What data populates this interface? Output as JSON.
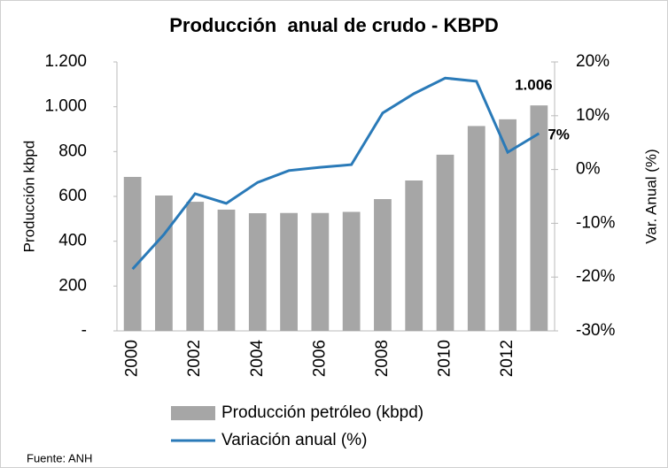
{
  "chart_data": {
    "type": "bar_line",
    "title": "Producción  anual de crudo - KBPD",
    "ylabel": "Producción kbpd",
    "y2label": "Var. Anual (%)",
    "source": "Fuente: ANH",
    "categories": [
      "2000",
      null,
      "2002",
      null,
      "2004",
      null,
      "2006",
      null,
      "2008",
      null,
      "2010",
      null,
      "2012",
      null
    ],
    "series": [
      {
        "name": "Producción petróleo (kbpd)",
        "type": "bar",
        "color": "#a6a6a6",
        "values": [
          687,
          604,
          576,
          541,
          525,
          526,
          526,
          531,
          588,
          671,
          786,
          914,
          944,
          1006
        ],
        "value_labels": [
          null,
          null,
          null,
          null,
          null,
          null,
          null,
          null,
          null,
          null,
          null,
          null,
          null,
          "1.006"
        ]
      },
      {
        "name": "Variación anual (%)",
        "type": "line",
        "axis": "y2",
        "color": "#2a7ab8",
        "values": [
          -18.5,
          -12.1,
          -4.5,
          -6.3,
          -2.4,
          -0.2,
          0.4,
          0.9,
          10.5,
          14.1,
          17.0,
          16.4,
          3.2,
          6.7
        ],
        "value_labels": [
          null,
          null,
          null,
          null,
          null,
          null,
          null,
          null,
          null,
          null,
          null,
          null,
          null,
          "7%"
        ]
      }
    ],
    "ylim": [
      0,
      1200
    ],
    "yticks": [
      {
        "value": 0,
        "label": "-"
      },
      200,
      400,
      600,
      800,
      {
        "value": 1000,
        "label": "1.000"
      },
      {
        "value": 1200,
        "label": "1.200"
      }
    ],
    "y2lim": [
      -30,
      20
    ],
    "y2ticks": [
      {
        "value": -30,
        "label": "-30%"
      },
      {
        "value": -20,
        "label": "-20%"
      },
      {
        "value": -10,
        "label": "-10%"
      },
      {
        "value": 0,
        "label": "0%"
      },
      {
        "value": 10,
        "label": "10%"
      },
      {
        "value": 20,
        "label": "20%"
      }
    ],
    "grid": false
  }
}
